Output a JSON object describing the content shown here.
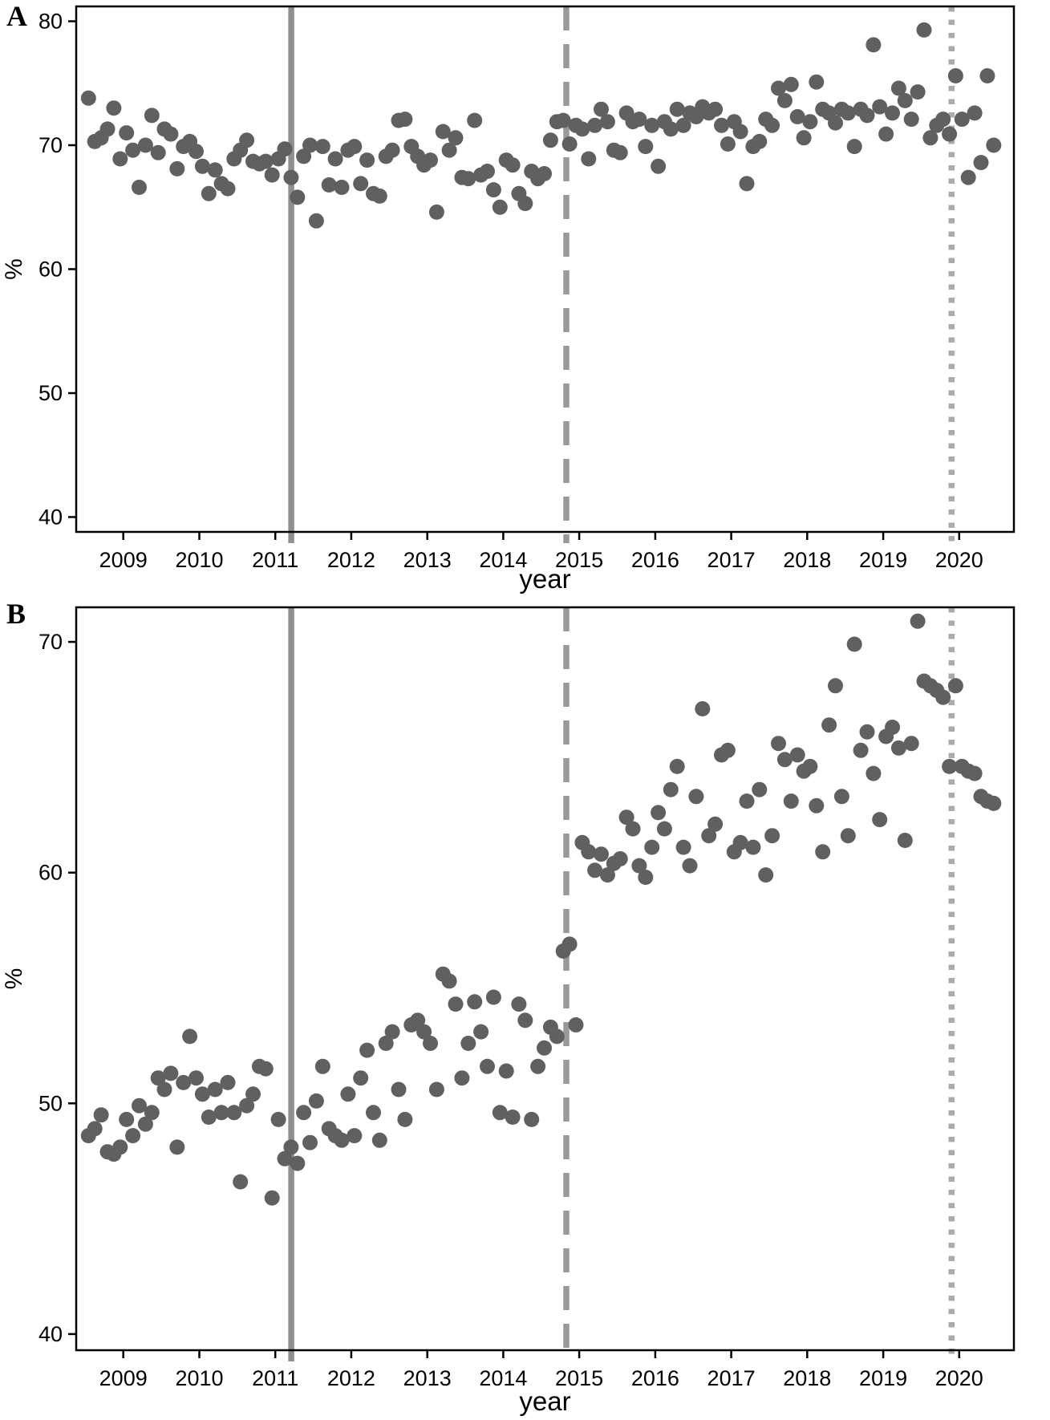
{
  "figure": {
    "panels": [
      {
        "label": "A"
      },
      {
        "label": "B"
      }
    ]
  },
  "chart_data": [
    {
      "type": "scatter",
      "panel": "A",
      "title": "",
      "xlabel": "year",
      "ylabel": "%",
      "xlim": [
        2008.38,
        2020.72
      ],
      "ylim": [
        38.8,
        81.2
      ],
      "xticks": [
        2009,
        2010,
        2011,
        2012,
        2013,
        2014,
        2015,
        2016,
        2017,
        2018,
        2019,
        2020
      ],
      "yticks": [
        40,
        50,
        60,
        70,
        80
      ],
      "grid": false,
      "legend": "none",
      "point_color": "#606060",
      "points": {
        "x_start": 2008.542,
        "x_step": 0.0833,
        "values": [
          73.8,
          70.3,
          70.6,
          71.3,
          73.0,
          68.9,
          71.0,
          69.6,
          66.6,
          70.0,
          72.4,
          69.4,
          71.3,
          70.9,
          68.1,
          69.9,
          70.3,
          69.5,
          68.3,
          66.1,
          68.0,
          66.9,
          66.5,
          68.9,
          69.6,
          70.4,
          68.7,
          68.5,
          68.7,
          67.6,
          68.9,
          69.7,
          67.4,
          65.8,
          69.1,
          70.0,
          63.9,
          69.9,
          66.8,
          68.9,
          66.6,
          69.6,
          69.9,
          66.9,
          68.8,
          66.1,
          65.9,
          69.1,
          69.6,
          72.0,
          72.1,
          69.9,
          69.1,
          68.4,
          68.8,
          64.6,
          71.1,
          69.6,
          70.6,
          67.4,
          67.3,
          72.0,
          67.6,
          67.9,
          66.4,
          65.0,
          68.8,
          68.4,
          66.1,
          65.3,
          67.9,
          67.3,
          67.7,
          70.4,
          71.9,
          72.0,
          70.1,
          71.6,
          71.3,
          68.9,
          71.6,
          72.9,
          71.9,
          69.6,
          69.4,
          72.6,
          71.9,
          72.1,
          69.9,
          71.6,
          68.3,
          71.9,
          71.3,
          72.9,
          71.6,
          72.6,
          72.3,
          73.1,
          72.6,
          72.9,
          71.6,
          70.1,
          71.9,
          71.1,
          66.9,
          69.9,
          70.3,
          72.1,
          71.6,
          74.6,
          73.6,
          74.9,
          72.3,
          70.6,
          71.9,
          75.1,
          72.9,
          72.6,
          71.8,
          72.9,
          72.6,
          69.9,
          72.9,
          72.4,
          78.1,
          73.1,
          70.9,
          72.6,
          74.6,
          73.6,
          72.1,
          74.3,
          79.3,
          70.6,
          71.6,
          72.1,
          70.9,
          75.6,
          72.1,
          67.4,
          72.6,
          68.6,
          75.6,
          70.0
        ]
      },
      "vlines": [
        {
          "x": 2011.21,
          "style": "solid",
          "color": "#8f8f8f"
        },
        {
          "x": 2014.83,
          "style": "dashed",
          "color": "#999999"
        },
        {
          "x": 2019.9,
          "style": "dotted",
          "color": "#ababab"
        }
      ]
    },
    {
      "type": "scatter",
      "panel": "B",
      "title": "",
      "xlabel": "year",
      "ylabel": "%",
      "xlim": [
        2008.38,
        2020.72
      ],
      "ylim": [
        39.3,
        71.5
      ],
      "xticks": [
        2009,
        2010,
        2011,
        2012,
        2013,
        2014,
        2015,
        2016,
        2017,
        2018,
        2019,
        2020
      ],
      "yticks": [
        40,
        50,
        60,
        70
      ],
      "grid": false,
      "legend": "none",
      "point_color": "#606060",
      "points": {
        "x_start": 2008.542,
        "x_step": 0.0833,
        "values": [
          48.6,
          48.9,
          49.5,
          47.9,
          47.8,
          48.1,
          49.3,
          48.6,
          49.9,
          49.1,
          49.6,
          51.1,
          50.6,
          51.3,
          48.1,
          50.9,
          52.9,
          51.1,
          50.4,
          49.4,
          50.6,
          49.6,
          50.9,
          49.6,
          46.6,
          49.9,
          50.4,
          51.6,
          51.5,
          45.9,
          49.3,
          47.6,
          48.1,
          47.4,
          49.6,
          48.3,
          50.1,
          51.6,
          48.9,
          48.6,
          48.4,
          50.4,
          48.6,
          51.1,
          52.3,
          49.6,
          48.4,
          52.6,
          53.1,
          50.6,
          49.3,
          53.4,
          53.6,
          53.1,
          52.6,
          50.6,
          55.6,
          55.3,
          54.3,
          51.1,
          52.6,
          54.4,
          53.1,
          51.6,
          54.6,
          49.6,
          51.4,
          49.4,
          54.3,
          53.6,
          49.3,
          51.6,
          52.4,
          53.3,
          52.9,
          56.6,
          56.9,
          53.4,
          61.3,
          60.9,
          60.1,
          60.8,
          59.9,
          60.4,
          60.6,
          62.4,
          61.9,
          60.3,
          59.8,
          61.1,
          62.6,
          61.9,
          63.6,
          64.6,
          61.1,
          60.3,
          63.3,
          67.1,
          61.6,
          62.1,
          65.1,
          65.3,
          60.9,
          61.3,
          63.1,
          61.1,
          63.6,
          59.9,
          61.6,
          65.6,
          64.9,
          63.1,
          65.1,
          64.4,
          64.6,
          62.9,
          60.9,
          66.4,
          68.1,
          63.3,
          61.6,
          69.9,
          65.3,
          66.1,
          64.3,
          62.3,
          65.9,
          66.3,
          65.4,
          61.4,
          65.6,
          70.9,
          68.3,
          68.1,
          67.9,
          67.6,
          64.6,
          68.1,
          64.6,
          64.4,
          64.3,
          63.3,
          63.1,
          63.0
        ]
      },
      "vlines": [
        {
          "x": 2011.21,
          "style": "solid",
          "color": "#8f8f8f"
        },
        {
          "x": 2014.83,
          "style": "dashed",
          "color": "#999999"
        },
        {
          "x": 2019.9,
          "style": "dotted",
          "color": "#ababab"
        }
      ]
    }
  ]
}
